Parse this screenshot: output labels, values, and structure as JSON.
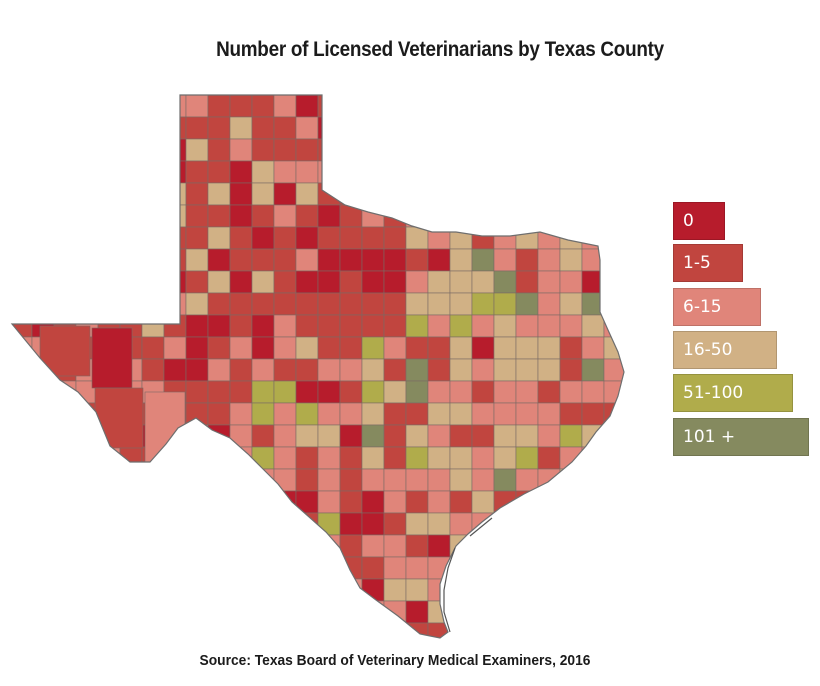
{
  "title": "Number of Licensed Veterinarians by Texas County",
  "source": "Source:  Texas Board of Veterinary Medical Examiners, 2016",
  "legend": [
    {
      "label": "0",
      "color": "#b71c2c"
    },
    {
      "label": "1-5",
      "color": "#c1453f"
    },
    {
      "label": "6-15",
      "color": "#e0857a"
    },
    {
      "label": "16-50",
      "color": "#d1b185"
    },
    {
      "label": "51-100",
      "color": "#b0ac4b"
    },
    {
      "label": "101 +",
      "color": "#858a5f"
    }
  ]
}
